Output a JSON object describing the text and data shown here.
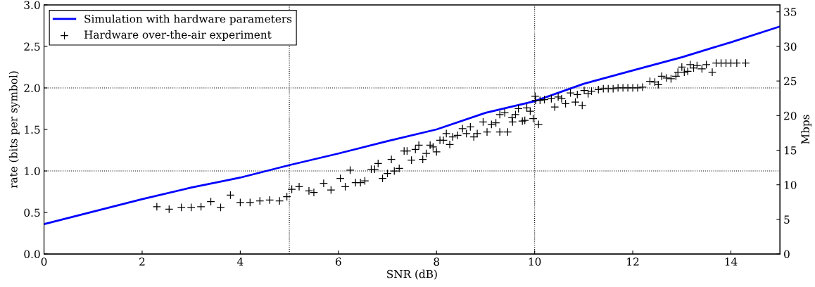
{
  "chart_data": {
    "type": "line",
    "xlabel": "SNR (dB)",
    "ylabel": "rate (bits per symbol)",
    "y2label": "Mbps",
    "xlim": [
      0,
      15
    ],
    "xticks": [
      0,
      2,
      4,
      6,
      8,
      10,
      12,
      14
    ],
    "ylim": [
      0,
      3.0
    ],
    "yticks": [
      {
        "value": 0,
        "label": "0.0"
      },
      {
        "value": 0.5,
        "label": "0.5"
      },
      {
        "value": 1.0,
        "label": "1.0"
      },
      {
        "value": 1.5,
        "label": "1.5"
      },
      {
        "value": 2.0,
        "label": "2.0"
      },
      {
        "value": 2.5,
        "label": "2.5"
      },
      {
        "value": 3.0,
        "label": "3.0"
      }
    ],
    "y2lim": [
      0,
      36
    ],
    "y2ticks": [
      0,
      5,
      10,
      15,
      20,
      25,
      30,
      35
    ],
    "legend": "top left",
    "grid": false,
    "ref_lines": [
      {
        "axis": "x",
        "value": 5,
        "color": "#000000",
        "line_style": "dotted"
      },
      {
        "axis": "x",
        "value": 10,
        "color": "#000000",
        "line_style": "dotted"
      },
      {
        "axis": "y",
        "value": 1.0,
        "color": "#000000",
        "line_style": "dotted"
      },
      {
        "axis": "y",
        "value": 2.0,
        "color": "#000000",
        "line_style": "dotted"
      }
    ],
    "series": [
      {
        "name": "Simulation with hardware parameters",
        "color": "#0000ff",
        "marker": "none",
        "line_style": "solid",
        "x": [
          0,
          1,
          2,
          3,
          4,
          5,
          6,
          7,
          8,
          9,
          10,
          11,
          12,
          13,
          14,
          15
        ],
        "values": [
          0.36,
          0.51,
          0.66,
          0.8,
          0.92,
          1.07,
          1.21,
          1.36,
          1.5,
          1.7,
          1.84,
          2.05,
          2.21,
          2.37,
          2.55,
          2.74
        ]
      },
      {
        "name": "Hardware over-the-air experiment",
        "type": "scatter",
        "color": "#000000",
        "marker": "cross",
        "x": [
          2.3,
          2.55,
          2.8,
          3.0,
          3.2,
          3.4,
          3.6,
          3.8,
          4.0,
          4.2,
          4.4,
          4.6,
          4.8,
          4.95,
          5.05,
          5.2,
          5.4,
          5.5,
          5.7,
          5.85,
          6.04,
          6.14,
          6.24,
          6.35,
          6.45,
          6.54,
          6.67,
          6.74,
          6.81,
          6.9,
          7.0,
          7.08,
          7.14,
          7.24,
          7.34,
          7.4,
          7.49,
          7.57,
          7.64,
          7.72,
          7.79,
          7.87,
          7.93,
          8.0,
          8.07,
          8.14,
          8.2,
          8.27,
          8.33,
          8.43,
          8.53,
          8.61,
          8.69,
          8.76,
          8.83,
          8.95,
          9.03,
          9.12,
          9.21,
          9.29,
          9.29,
          9.39,
          9.45,
          9.54,
          9.55,
          9.61,
          9.67,
          9.75,
          9.8,
          9.84,
          9.91,
          9.97,
          10.01,
          10.02,
          10.08,
          10.11,
          10.2,
          10.34,
          10.41,
          10.48,
          10.55,
          10.63,
          10.73,
          10.83,
          10.87,
          10.97,
          11.01,
          11.09,
          11.16,
          11.3,
          11.4,
          11.5,
          11.6,
          11.7,
          11.8,
          11.9,
          12.0,
          12.1,
          12.2,
          12.35,
          12.45,
          12.52,
          12.59,
          12.69,
          12.78,
          12.88,
          12.92,
          13.0,
          13.05,
          13.12,
          13.17,
          13.24,
          13.31,
          13.41,
          13.5,
          13.62,
          13.7,
          13.8,
          13.9,
          14.0,
          14.12,
          14.3
        ],
        "values": [
          0.57,
          0.54,
          0.56,
          0.56,
          0.57,
          0.63,
          0.56,
          0.71,
          0.62,
          0.62,
          0.64,
          0.65,
          0.64,
          0.69,
          0.78,
          0.81,
          0.76,
          0.74,
          0.85,
          0.77,
          0.91,
          0.81,
          1.01,
          0.86,
          0.86,
          0.88,
          1.02,
          1.02,
          1.09,
          0.91,
          0.97,
          1.14,
          1.0,
          1.03,
          1.24,
          1.24,
          1.13,
          1.26,
          1.31,
          1.14,
          1.21,
          1.31,
          1.29,
          1.23,
          1.37,
          1.37,
          1.45,
          1.32,
          1.41,
          1.43,
          1.51,
          1.45,
          1.53,
          1.41,
          1.45,
          1.59,
          1.47,
          1.56,
          1.58,
          1.47,
          1.68,
          1.7,
          1.47,
          1.64,
          1.59,
          1.68,
          1.75,
          1.6,
          1.61,
          1.76,
          1.72,
          1.63,
          1.9,
          1.85,
          1.56,
          1.85,
          1.86,
          1.87,
          1.77,
          1.89,
          1.87,
          1.81,
          1.94,
          1.83,
          1.92,
          1.79,
          1.97,
          1.93,
          1.96,
          1.98,
          1.99,
          1.99,
          1.99,
          2.0,
          2.0,
          2.0,
          2.0,
          2.0,
          2.01,
          2.08,
          2.07,
          2.04,
          2.14,
          2.12,
          2.11,
          2.14,
          2.19,
          2.25,
          2.19,
          2.2,
          2.28,
          2.24,
          2.27,
          2.23,
          2.28,
          2.19,
          2.3,
          2.3,
          2.3,
          2.3,
          2.3,
          2.3
        ]
      }
    ]
  }
}
